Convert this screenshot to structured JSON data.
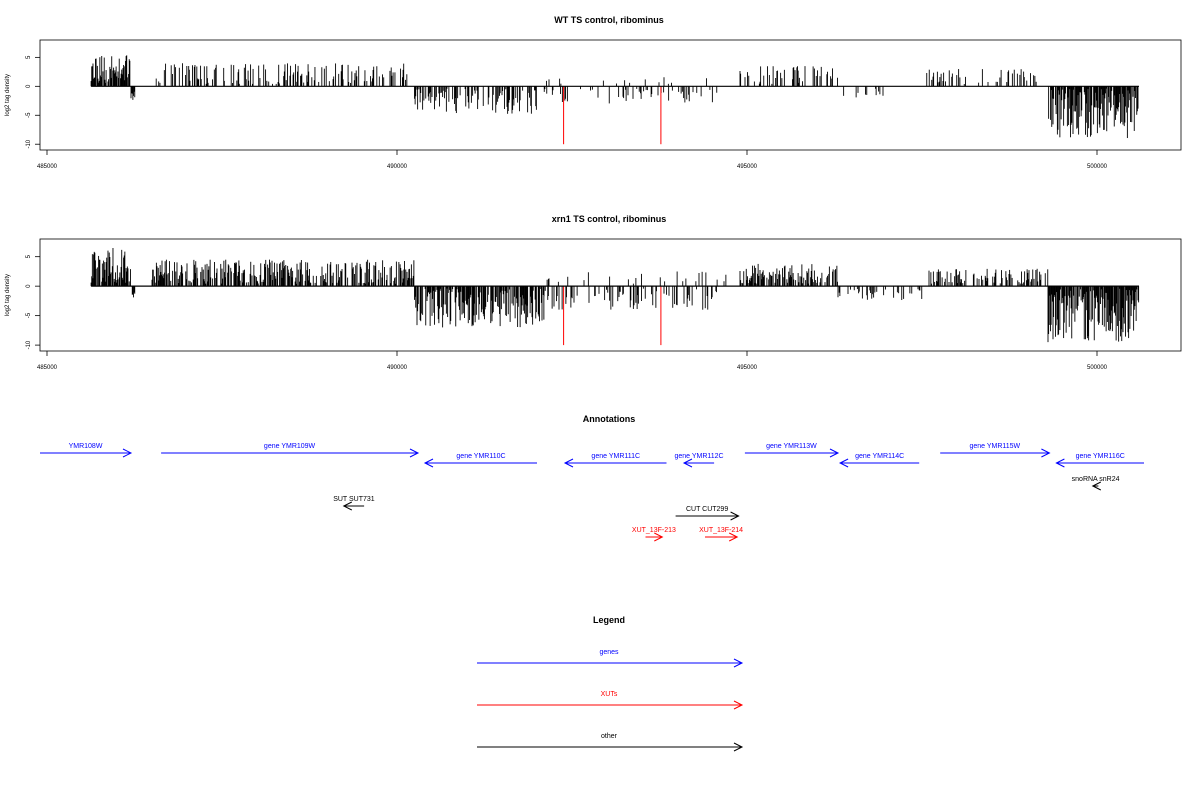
{
  "chart_data": [
    {
      "type": "bar",
      "title": "WT TS control, ribominus",
      "ylabel": "log2 tag density",
      "xlim": [
        484900,
        501200
      ],
      "ylim": [
        -11,
        8
      ],
      "xticks": [
        485000,
        490000,
        495000,
        500000
      ],
      "yticks": [
        5,
        0,
        -5,
        -10
      ],
      "data_range": [
        485630,
        500600
      ],
      "red_lines": [
        {
          "x": 492380,
          "y": -10
        },
        {
          "x": 493770,
          "y": -10
        }
      ],
      "regions": [
        {
          "from": 485630,
          "to": 486200,
          "sign": 1,
          "max": 5.5,
          "density": 0.85,
          "seed": 11
        },
        {
          "from": 486200,
          "to": 486260,
          "sign": -1,
          "max": 2.5,
          "density": 1.0,
          "seed": 12
        },
        {
          "from": 486560,
          "to": 490200,
          "sign": 1,
          "max": 4.0,
          "density": 0.4,
          "seed": 13
        },
        {
          "from": 490250,
          "to": 492000,
          "sign": -1,
          "max": 5.0,
          "density": 0.55,
          "seed": 14
        },
        {
          "from": 492050,
          "to": 494600,
          "sign": -1,
          "max": 3.0,
          "density": 0.2,
          "seed": 15
        },
        {
          "from": 492100,
          "to": 494500,
          "sign": 1,
          "max": 2.0,
          "density": 0.08,
          "seed": 16
        },
        {
          "from": 494900,
          "to": 496300,
          "sign": 1,
          "max": 3.5,
          "density": 0.35,
          "seed": 17
        },
        {
          "from": 496300,
          "to": 497000,
          "sign": -1,
          "max": 2.0,
          "density": 0.12,
          "seed": 18
        },
        {
          "from": 497550,
          "to": 499300,
          "sign": 1,
          "max": 3.0,
          "density": 0.25,
          "seed": 19
        },
        {
          "from": 499300,
          "to": 500600,
          "sign": -1,
          "max": 9.0,
          "density": 0.95,
          "seed": 20
        }
      ]
    },
    {
      "type": "bar",
      "title": "xrn1 TS control, ribominus",
      "ylabel": "log2 tag density",
      "xlim": [
        484900,
        501200
      ],
      "ylim": [
        -11,
        8
      ],
      "xticks": [
        485000,
        490000,
        495000,
        500000
      ],
      "yticks": [
        5,
        0,
        -5,
        -10
      ],
      "data_range": [
        485630,
        500600
      ],
      "red_lines": [
        {
          "x": 492380,
          "y": -10
        },
        {
          "x": 493770,
          "y": -10
        }
      ],
      "regions": [
        {
          "from": 485630,
          "to": 486200,
          "sign": 1,
          "max": 6.5,
          "density": 0.95,
          "seed": 21
        },
        {
          "from": 486200,
          "to": 486260,
          "sign": -1,
          "max": 2.0,
          "density": 1.0,
          "seed": 22
        },
        {
          "from": 486500,
          "to": 490250,
          "sign": 1,
          "max": 4.5,
          "density": 0.7,
          "seed": 23
        },
        {
          "from": 490250,
          "to": 492100,
          "sign": -1,
          "max": 7.0,
          "density": 0.85,
          "seed": 24
        },
        {
          "from": 492100,
          "to": 494700,
          "sign": -1,
          "max": 4.0,
          "density": 0.35,
          "seed": 25
        },
        {
          "from": 492100,
          "to": 494700,
          "sign": 1,
          "max": 2.5,
          "density": 0.12,
          "seed": 26
        },
        {
          "from": 494900,
          "to": 496300,
          "sign": 1,
          "max": 4.0,
          "density": 0.85,
          "seed": 27
        },
        {
          "from": 496300,
          "to": 497500,
          "sign": -1,
          "max": 2.5,
          "density": 0.35,
          "seed": 28
        },
        {
          "from": 497600,
          "to": 499300,
          "sign": 1,
          "max": 3.0,
          "density": 0.55,
          "seed": 29
        },
        {
          "from": 499300,
          "to": 500600,
          "sign": -1,
          "max": 9.5,
          "density": 0.95,
          "seed": 30
        }
      ]
    }
  ],
  "annotations": {
    "title": "Annotations",
    "items": [
      {
        "label": "YMR108W",
        "type": "gene",
        "strand": "+",
        "start": 484900,
        "end": 486200,
        "row": 0
      },
      {
        "label": "gene YMR109W",
        "type": "gene",
        "strand": "+",
        "start": 486630,
        "end": 490300,
        "row": 0
      },
      {
        "label": "gene YMR110C",
        "type": "gene",
        "strand": "-",
        "start": 490400,
        "end": 492000,
        "row": 1
      },
      {
        "label": "gene YMR111C",
        "type": "gene",
        "strand": "-",
        "start": 492400,
        "end": 493850,
        "row": 1
      },
      {
        "label": "gene YMR112C",
        "type": "gene",
        "strand": "-",
        "start": 494100,
        "end": 494530,
        "row": 1
      },
      {
        "label": "gene YMR113W",
        "type": "gene",
        "strand": "+",
        "start": 494970,
        "end": 496300,
        "row": 0
      },
      {
        "label": "gene YMR114C",
        "type": "gene",
        "strand": "-",
        "start": 496330,
        "end": 497460,
        "row": 1
      },
      {
        "label": "gene YMR115W",
        "type": "gene",
        "strand": "+",
        "start": 497760,
        "end": 499320,
        "row": 0
      },
      {
        "label": "gene YMR116C",
        "type": "gene",
        "strand": "-",
        "start": 499420,
        "end": 501090,
        "row": 1
      },
      {
        "label": "snoRNA snR24",
        "type": "other",
        "strand": "-",
        "start": 499940,
        "end": 500020,
        "row": 2
      },
      {
        "label": "SUT SUT731",
        "type": "other",
        "strand": "-",
        "start": 489240,
        "end": 489530,
        "row": 3
      },
      {
        "label": "CUT CUT299",
        "type": "other",
        "strand": "+",
        "start": 493980,
        "end": 494880,
        "row": 4
      },
      {
        "label": "XUT_13F-213",
        "type": "xut",
        "strand": "+",
        "start": 493550,
        "end": 493790,
        "row": 5
      },
      {
        "label": "XUT_13F-214",
        "type": "xut",
        "strand": "+",
        "start": 494400,
        "end": 494860,
        "row": 5
      }
    ]
  },
  "legend": {
    "title": "Legend",
    "items": [
      {
        "label": "genes",
        "type": "gene"
      },
      {
        "label": "XUTs",
        "type": "xut"
      },
      {
        "label": "other",
        "type": "other"
      }
    ]
  },
  "colors": {
    "gene": "#0000ff",
    "xut": "#ff0000",
    "other": "#000000",
    "signal": "#000000",
    "marker": "#ff0000"
  }
}
